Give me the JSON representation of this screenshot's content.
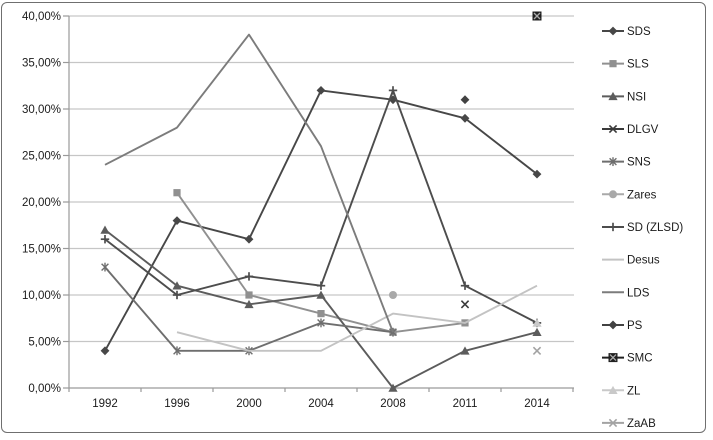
{
  "chart_data": {
    "type": "line",
    "title": "",
    "xlabel": "",
    "ylabel": "",
    "categories": [
      "1992",
      "1996",
      "2000",
      "2004",
      "2008",
      "2011",
      "2014"
    ],
    "y_axis": {
      "min": 0,
      "max": 40,
      "step": 5,
      "tick_labels": [
        "0,00%",
        "5,00%",
        "10,00%",
        "15,00%",
        "20,00%",
        "25,00%",
        "30,00%",
        "35,00%",
        "40,00%"
      ]
    },
    "grid": true,
    "legend_position": "right",
    "series": [
      {
        "name": "SDS",
        "marker": "diamond",
        "color": "#474747",
        "values": [
          4,
          18,
          16,
          32,
          31,
          29,
          23
        ]
      },
      {
        "name": "SLS",
        "marker": "square",
        "color": "#909090",
        "values": [
          null,
          21,
          10,
          8,
          6,
          7,
          null
        ]
      },
      {
        "name": "NSI",
        "marker": "triangle",
        "color": "#5c5c5c",
        "values": [
          17,
          11,
          9,
          10,
          0,
          4,
          6
        ]
      },
      {
        "name": "DLGV",
        "marker": "x",
        "color": "#3a3a3a",
        "values": [
          null,
          null,
          null,
          null,
          null,
          9,
          null
        ]
      },
      {
        "name": "SNS",
        "marker": "star",
        "color": "#6e6e6e",
        "values": [
          13,
          4,
          4,
          7,
          6,
          null,
          null
        ]
      },
      {
        "name": "Zares",
        "marker": "circle",
        "color": "#a9a9a9",
        "values": [
          null,
          null,
          null,
          null,
          10,
          null,
          null
        ]
      },
      {
        "name": "SD (ZLSD)",
        "marker": "plus",
        "color": "#4d4d4d",
        "values": [
          16,
          10,
          12,
          11,
          32,
          11,
          7
        ]
      },
      {
        "name": "Desus",
        "marker": "none",
        "color": "#c3c3c3",
        "values": [
          null,
          6,
          4,
          4,
          8,
          7,
          11
        ]
      },
      {
        "name": "LDS",
        "marker": "none",
        "color": "#7c7c7c",
        "values": [
          24,
          28,
          38,
          26,
          6,
          null,
          null
        ]
      },
      {
        "name": "PS",
        "marker": "diamond",
        "color": "#424242",
        "values": [
          null,
          null,
          null,
          null,
          null,
          31,
          null
        ]
      },
      {
        "name": "SMC",
        "marker": "square-x",
        "color": "#202020",
        "values": [
          null,
          null,
          null,
          null,
          null,
          null,
          40
        ]
      },
      {
        "name": "ZL",
        "marker": "triangle",
        "color": "#c9c9c9",
        "values": [
          null,
          null,
          null,
          null,
          null,
          null,
          7
        ]
      },
      {
        "name": "ZaAB",
        "marker": "x",
        "color": "#a3a3a3",
        "values": [
          null,
          null,
          null,
          null,
          null,
          null,
          4
        ]
      }
    ]
  },
  "colors": {
    "background": "#ffffff",
    "gridline": "#c6c6c6",
    "axis": "#9a9a9a",
    "text": "#1b1b1b",
    "frame_border": "#6f6f6f",
    "marker_inner_x": "#ababab"
  }
}
